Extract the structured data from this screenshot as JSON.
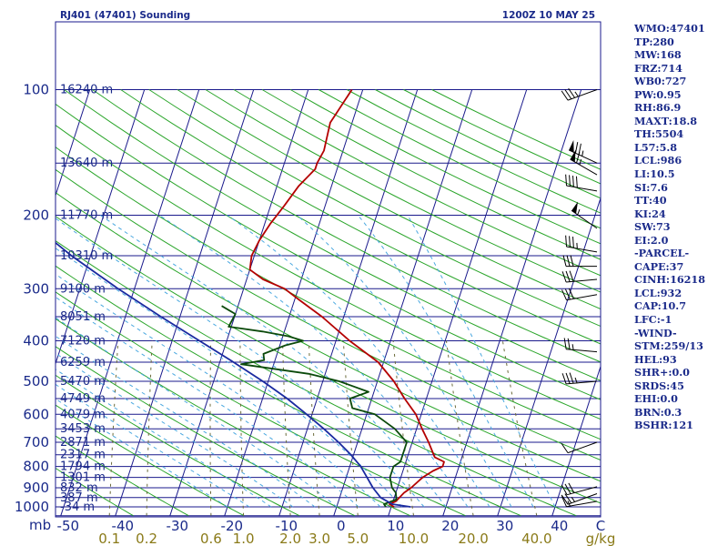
{
  "chart_data": {
    "type": "line",
    "title": "RJ401 (47401) Sounding",
    "valid_time": "1200Z 10 MAY 25",
    "pressure_axis": {
      "label": "mb",
      "ticks": [
        100,
        200,
        300,
        400,
        500,
        600,
        700,
        800,
        900,
        1000
      ],
      "range": [
        1050,
        100
      ],
      "scale": "log"
    },
    "temperature_axis": {
      "ticks": [
        -50,
        -40,
        -30,
        -20,
        -10,
        0,
        10,
        20,
        30,
        40
      ],
      "end_label": "C",
      "range": [
        -50,
        50
      ]
    },
    "mixing_ratio_labels": [
      "0.1",
      "0.2",
      "0.6",
      "1.0",
      "2.0",
      "3.0",
      "5.0",
      "10.0",
      "20.0",
      "40.0"
    ],
    "mixing_ratio_unit": "g/kg",
    "height_labels": [
      {
        "text": "16240 m",
        "p": 100
      },
      {
        "text": "13640 m",
        "p": 150
      },
      {
        "text": "11770 m",
        "p": 200
      },
      {
        "text": "10310 m",
        "p": 250
      },
      {
        "text": "9100 m",
        "p": 300
      },
      {
        "text": "8051 m",
        "p": 350
      },
      {
        "text": "7120 m",
        "p": 400
      },
      {
        "text": "6259 m",
        "p": 450
      },
      {
        "text": "5470 m",
        "p": 500
      },
      {
        "text": "4749 m",
        "p": 550
      },
      {
        "text": "4079 m",
        "p": 600
      },
      {
        "text": "3453 m",
        "p": 650
      },
      {
        "text": "2871 m",
        "p": 700
      },
      {
        "text": "2317 m",
        "p": 750
      },
      {
        "text": "1794 m",
        "p": 800
      },
      {
        "text": "1301 m",
        "p": 850
      },
      {
        "text": "832 m",
        "p": 900
      },
      {
        "text": "387 m",
        "p": 950
      },
      {
        "text": "-34 m",
        "p": 1000
      }
    ],
    "series": [
      {
        "name": "Temperature",
        "color": "#b40000",
        "points": [
          [
            1000,
            10.5
          ],
          [
            985,
            9.5
          ],
          [
            970,
            10.5
          ],
          [
            925,
            11.5
          ],
          [
            900,
            12.5
          ],
          [
            850,
            14.0
          ],
          [
            820,
            15.5
          ],
          [
            800,
            17.0
          ],
          [
            780,
            17.0
          ],
          [
            760,
            15.0
          ],
          [
            700,
            13.0
          ],
          [
            650,
            11.0
          ],
          [
            600,
            9.0
          ],
          [
            550,
            6.0
          ],
          [
            500,
            3.0
          ],
          [
            450,
            -1.0
          ],
          [
            400,
            -7.5
          ],
          [
            350,
            -14.0
          ],
          [
            320,
            -19.0
          ],
          [
            300,
            -22.5
          ],
          [
            285,
            -27.0
          ],
          [
            270,
            -30.0
          ],
          [
            250,
            -30.5
          ],
          [
            230,
            -30.0
          ],
          [
            210,
            -29.0
          ],
          [
            190,
            -27.5
          ],
          [
            170,
            -26.0
          ],
          [
            155,
            -24.0
          ],
          [
            150,
            -24.0
          ],
          [
            140,
            -23.5
          ],
          [
            120,
            -24.0
          ],
          [
            100,
            -22.0
          ]
        ]
      },
      {
        "name": "Dewpoint",
        "color": "#0b4a0b",
        "points": [
          [
            1000,
            9.0
          ],
          [
            985,
            8.5
          ],
          [
            960,
            10.5
          ],
          [
            925,
            10.0
          ],
          [
            900,
            9.0
          ],
          [
            850,
            8.0
          ],
          [
            800,
            8.0
          ],
          [
            780,
            9.0
          ],
          [
            700,
            9.0
          ],
          [
            650,
            6.0
          ],
          [
            600,
            1.5
          ],
          [
            580,
            -3.0
          ],
          [
            550,
            -4.0
          ],
          [
            530,
            -1.0
          ],
          [
            500,
            -7.0
          ],
          [
            480,
            -13.0
          ],
          [
            455,
            -26.0
          ],
          [
            445,
            -22.0
          ],
          [
            430,
            -22.5
          ],
          [
            410,
            -19.0
          ],
          [
            400,
            -16.0
          ],
          [
            390,
            -19.0
          ],
          [
            380,
            -24.0
          ],
          [
            370,
            -30.5
          ],
          [
            345,
            -30.0
          ],
          [
            330,
            -33.0
          ]
        ]
      },
      {
        "name": "Parcel",
        "color": "#1a2aa0",
        "points": [
          [
            1000,
            13.5
          ],
          [
            985,
            10.0
          ],
          [
            950,
            7.5
          ],
          [
            900,
            5.5
          ],
          [
            850,
            3.8
          ],
          [
            800,
            2.0
          ],
          [
            750,
            -0.5
          ],
          [
            700,
            -3.5
          ],
          [
            650,
            -7.0
          ],
          [
            600,
            -11.0
          ],
          [
            550,
            -15.5
          ],
          [
            500,
            -21.0
          ],
          [
            450,
            -27.5
          ],
          [
            400,
            -35.0
          ],
          [
            350,
            -43.5
          ],
          [
            300,
            -53.0
          ],
          [
            250,
            -63.5
          ],
          [
            200,
            -75.0
          ],
          [
            150,
            -89.0
          ],
          [
            120,
            -100.0
          ]
        ]
      }
    ],
    "wind_barbs": [
      {
        "p": 100,
        "dir": 250,
        "speed": 35
      },
      {
        "p": 150,
        "dir": 295,
        "speed": 75
      },
      {
        "p": 160,
        "dir": 300,
        "speed": 65
      },
      {
        "p": 175,
        "dir": 280,
        "speed": 40
      },
      {
        "p": 215,
        "dir": 305,
        "speed": 55
      },
      {
        "p": 245,
        "dir": 280,
        "speed": 35
      },
      {
        "p": 265,
        "dir": 270,
        "speed": 30
      },
      {
        "p": 285,
        "dir": 265,
        "speed": 30
      },
      {
        "p": 310,
        "dir": 260,
        "speed": 30
      },
      {
        "p": 425,
        "dir": 275,
        "speed": 25
      },
      {
        "p": 500,
        "dir": 265,
        "speed": 35
      },
      {
        "p": 700,
        "dir": 250,
        "speed": 10
      },
      {
        "p": 895,
        "dir": 255,
        "speed": 30
      },
      {
        "p": 930,
        "dir": 250,
        "speed": 25
      },
      {
        "p": 970,
        "dir": 260,
        "speed": 15
      }
    ],
    "grid": true
  },
  "indices": [
    "WMO:47401",
    "TP:280",
    "MW:168",
    "FRZ:714",
    "WB0:727",
    "PW:0.95",
    "RH:86.9",
    "MAXT:18.8",
    "TH:5504",
    "L57:5.8",
    "LCL:986",
    "LI:10.5",
    "SI:7.6",
    "TT:40",
    "KI:24",
    "SW:73",
    "EI:2.0",
    "-PARCEL-",
    "CAPE:37",
    "CINH:16218",
    "LCL:932",
    "CAP:10.7",
    "LFC:-1",
    "-WIND-",
    "STM:259/13",
    "HEL:93",
    "SHR+:0.0",
    "SRDS:45",
    "EHI:0.0",
    "BRN:0.3",
    "BSHR:121"
  ],
  "colors": {
    "background": "#ffffff",
    "isobar": "#1a1a8c",
    "isotherm": "#1a1a8c",
    "dry_adiabat": "#2aa52a",
    "moist_adiabat": "#4aa8e0",
    "mixing_ratio": "#6b6b3a",
    "temperature": "#b40000",
    "dewpoint": "#0b4a0b",
    "parcel": "#1a2aa0",
    "text": "#1a2a8a",
    "mixing_ratio_text": "#8a7a18",
    "barb": "#000000"
  }
}
